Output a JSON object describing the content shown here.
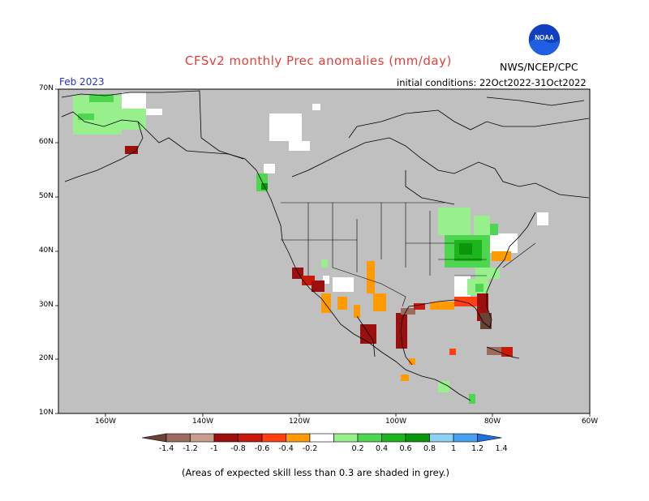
{
  "header": {
    "title": "CFSv2 monthly Prec anomalies (mm/day)",
    "agency": "NWS/NCEP/CPC",
    "logo_text": "NOAA",
    "month": "Feb 2023",
    "initial_conditions": "initial conditions: 22Oct2022-31Oct2022"
  },
  "axes": {
    "lat_labels": [
      "70N",
      "60N",
      "50N",
      "40N",
      "30N",
      "20N",
      "10N"
    ],
    "lon_labels": [
      "160W",
      "140W",
      "120W",
      "100W",
      "80W",
      "60W"
    ]
  },
  "colorbar": {
    "labels": [
      "-1.4",
      "-1.2",
      "-1",
      "-0.8",
      "-0.6",
      "-0.4",
      "-0.2",
      "0.2",
      "0.4",
      "0.6",
      "0.8",
      "1",
      "1.2",
      "1.4"
    ],
    "colors": [
      "#6b4336",
      "#9b6b5e",
      "#c79d8e",
      "#9b0f0f",
      "#c81a0a",
      "#ff4010",
      "#ff9a00",
      "#ffffff",
      "#98f08c",
      "#4ed650",
      "#1eb41e",
      "#0a960a",
      "#8fd0f5",
      "#4aa0f0",
      "#1f6fe0"
    ],
    "grey": "#c0c0c0"
  },
  "footnote": "(Areas of expected skill less than 0.3 are shaded in grey.)"
}
